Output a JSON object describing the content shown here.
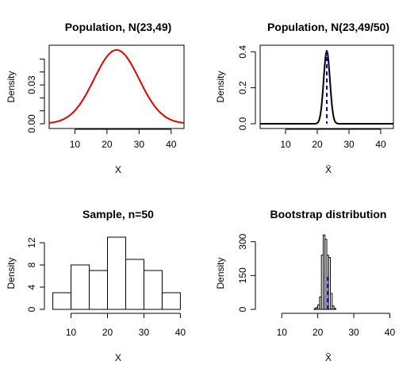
{
  "chart_data": [
    {
      "type": "line",
      "title": "Population, N(23,49)",
      "xlabel": "X",
      "ylabel": "Density",
      "xlim": [
        2,
        44
      ],
      "ylim": [
        0,
        0.057
      ],
      "xticks": [
        "10",
        "20",
        "30",
        "40"
      ],
      "yticks": [
        "0.00",
        "0.03"
      ],
      "box": true,
      "series": [
        {
          "curve": "normal",
          "mean": 23,
          "sd": 7,
          "x_range": [
            2,
            44
          ],
          "color": "#dd0000"
        }
      ]
    },
    {
      "type": "line",
      "title": "Population, N(23,49/50)",
      "xlabel": "X̄",
      "ylabel": "Density",
      "xlim": [
        2,
        44
      ],
      "ylim": [
        0,
        0.41
      ],
      "xticks": [
        "10",
        "20",
        "30",
        "40"
      ],
      "yticks": [
        "0.0",
        "0.2",
        "0.4"
      ],
      "box": true,
      "series": [
        {
          "curve": "normal",
          "mean": 23,
          "sd": 0.99,
          "x_range": [
            2,
            44
          ],
          "color": "#000000"
        }
      ],
      "vline": {
        "x": 23,
        "color": "#0000ee",
        "style": "dashed"
      }
    },
    {
      "type": "bar",
      "title": "Sample, n=50",
      "xlabel": "X",
      "ylabel": "Density",
      "xlim": [
        5,
        40
      ],
      "ylim": [
        0,
        13
      ],
      "xticks": [
        "10",
        "20",
        "30",
        "40"
      ],
      "yticks": [
        "0",
        "4",
        "8",
        "12"
      ],
      "box": false,
      "bins": [
        [
          5,
          10
        ],
        [
          10,
          15
        ],
        [
          15,
          20
        ],
        [
          20,
          25
        ],
        [
          25,
          30
        ],
        [
          30,
          35
        ],
        [
          35,
          40
        ]
      ],
      "values": [
        3,
        8,
        7,
        13,
        9,
        7,
        3
      ]
    },
    {
      "type": "bar",
      "title": "Bootstrap distribution",
      "xlabel": "X̄",
      "ylabel": "Density",
      "xlim": [
        5,
        40
      ],
      "ylim": [
        0,
        320
      ],
      "xticks": [
        "10",
        "20",
        "30",
        "40"
      ],
      "yticks": [
        "0",
        "150",
        "300"
      ],
      "box": false,
      "bins": [
        [
          19,
          19.5
        ],
        [
          19.5,
          20
        ],
        [
          20,
          20.5
        ],
        [
          20.5,
          21
        ],
        [
          21,
          21.5
        ],
        [
          21.5,
          22
        ],
        [
          22,
          22.5
        ],
        [
          22.5,
          23
        ],
        [
          23,
          23.5
        ],
        [
          23.5,
          24
        ],
        [
          24,
          24.5
        ],
        [
          24.5,
          25
        ]
      ],
      "values": [
        3,
        8,
        20,
        55,
        240,
        330,
        310,
        240,
        230,
        70,
        15,
        4
      ],
      "vline": {
        "x": 22.6,
        "color": "#0000ee",
        "style": "dashed"
      }
    }
  ]
}
